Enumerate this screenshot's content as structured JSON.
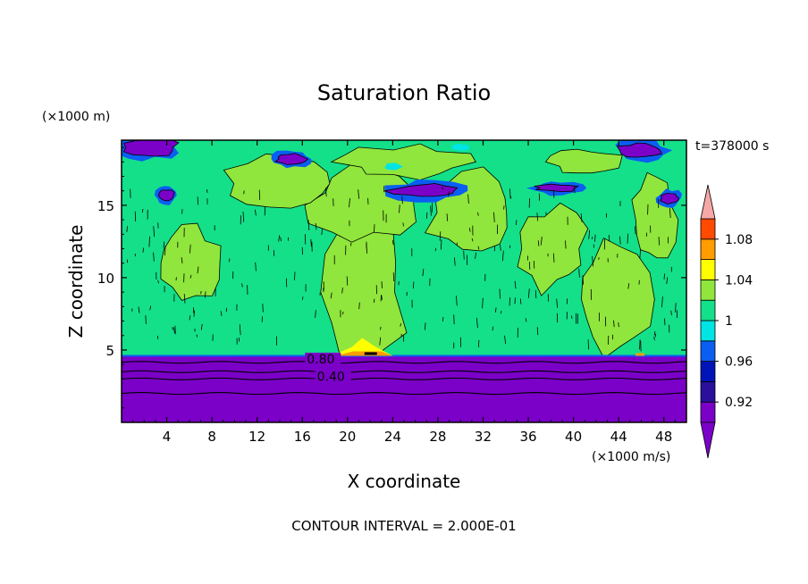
{
  "chart_data": {
    "type": "heatmap",
    "title": "Saturation Ratio",
    "xlabel": "X coordinate",
    "ylabel": "Z coordinate",
    "x_unit": "(×1000 m/s)",
    "y_unit": "(×1000 m)",
    "time_label": "t=378000 s",
    "footer": "CONTOUR INTERVAL = 2.000E-01",
    "xlim": [
      0,
      50
    ],
    "ylim": [
      0,
      19.5
    ],
    "x_ticks": [
      4,
      8,
      12,
      16,
      20,
      24,
      28,
      32,
      36,
      40,
      44,
      48
    ],
    "y_ticks": [
      5,
      10,
      15
    ],
    "contour_labels": [
      {
        "value": "0.80",
        "x": 16.4,
        "z": 4.2
      },
      {
        "value": "0.40",
        "x": 17.3,
        "z": 3.0
      }
    ],
    "contour_lines_z": [
      4.15,
      3.5,
      3.0,
      2.0
    ],
    "colorbar": {
      "tick_labels": [
        "0.92",
        "0.96",
        "1",
        "1.04",
        "1.08"
      ],
      "levels": [
        0.9,
        0.92,
        0.94,
        0.96,
        0.98,
        1.0,
        1.02,
        1.04,
        1.06,
        1.08,
        1.1
      ],
      "colors": [
        "#7b00c8",
        "#2a109c",
        "#0014b8",
        "#0a5ef2",
        "#00e4e4",
        "#14e08a",
        "#90e63c",
        "#ffff00",
        "#ff9c00",
        "#ff4a00",
        "#ff1e1e"
      ],
      "under_color": "#7b00c8",
      "over_color": "#f7a7a7"
    },
    "regions": {
      "background": "#14e08a",
      "lower_layer_top_z": 4.6,
      "lower_layer_color": "#7b00c8"
    }
  }
}
